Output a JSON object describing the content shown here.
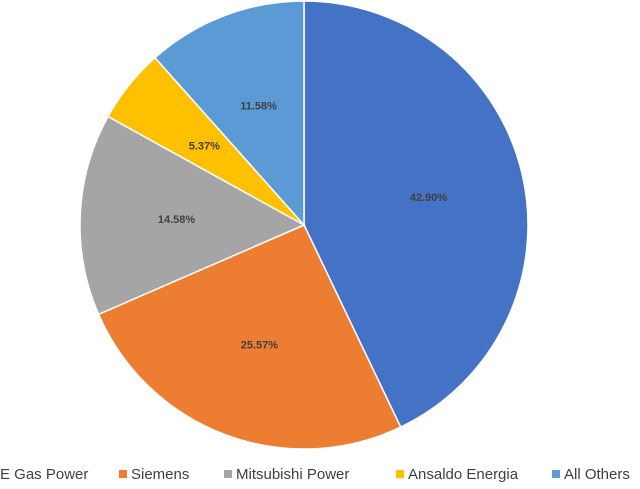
{
  "chart_data": {
    "type": "pie",
    "title": "",
    "categories": [
      "E Gas Power",
      "Siemens",
      "Mitsubishi Power",
      "Ansaldo Energia",
      "All Others"
    ],
    "values": [
      42.9,
      25.57,
      14.58,
      5.37,
      11.58
    ],
    "labels": [
      "42.90%",
      "25.57%",
      "14.58%",
      "5.37%",
      "11.58%"
    ],
    "colors": [
      "#4472C4",
      "#ED7D31",
      "#A5A5A5",
      "#FFC000",
      "#5B9BD5"
    ],
    "legend_position": "bottom",
    "start_angle_deg": 0,
    "direction": "clockwise"
  }
}
